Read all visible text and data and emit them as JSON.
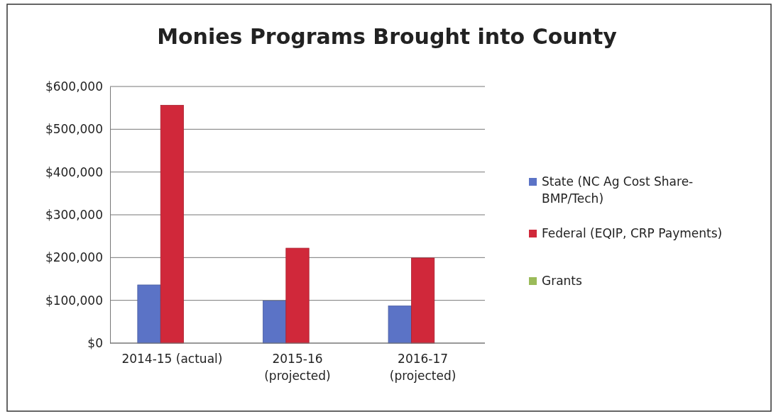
{
  "chart_data": {
    "type": "bar",
    "title": "Monies Programs Brought into County",
    "categories": [
      "2014-15 (actual)",
      "2015-16\n(projected)",
      "2016-17\n(projected)"
    ],
    "series": [
      {
        "name": "State (NC Ag Cost Share-\nBMP/Tech)",
        "color": "#5b73c6",
        "values": [
          136000,
          99000,
          87000
        ]
      },
      {
        "name": "Federal (EQIP, CRP Payments)",
        "color": "#d0283a",
        "values": [
          556000,
          222000,
          199000
        ]
      },
      {
        "name": "Grants",
        "color": "#9bbb59",
        "values": [
          0,
          0,
          0
        ]
      }
    ],
    "ylim": [
      0,
      600000
    ],
    "yticks": [
      {
        "value": 0,
        "label": "$0"
      },
      {
        "value": 100000,
        "label": "$100,000"
      },
      {
        "value": 200000,
        "label": "$200,000"
      },
      {
        "value": 300000,
        "label": "$300,000"
      },
      {
        "value": 400000,
        "label": "$400,000"
      },
      {
        "value": 500000,
        "label": "$500,000"
      },
      {
        "value": 600000,
        "label": "$600,000"
      }
    ],
    "grid": "y",
    "legend": "right"
  }
}
